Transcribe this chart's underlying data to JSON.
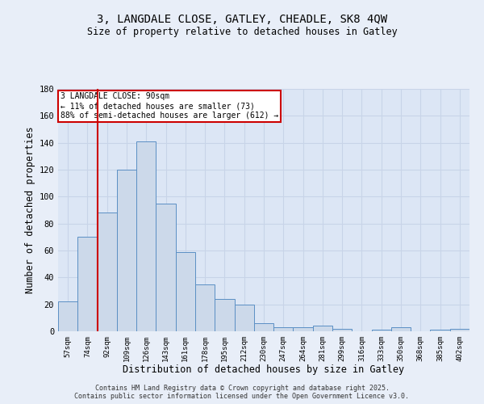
{
  "title1": "3, LANGDALE CLOSE, GATLEY, CHEADLE, SK8 4QW",
  "title2": "Size of property relative to detached houses in Gatley",
  "xlabel": "Distribution of detached houses by size in Gatley",
  "ylabel": "Number of detached properties",
  "bar_labels": [
    "57sqm",
    "74sqm",
    "92sqm",
    "109sqm",
    "126sqm",
    "143sqm",
    "161sqm",
    "178sqm",
    "195sqm",
    "212sqm",
    "230sqm",
    "247sqm",
    "264sqm",
    "281sqm",
    "299sqm",
    "316sqm",
    "333sqm",
    "350sqm",
    "368sqm",
    "385sqm",
    "402sqm"
  ],
  "bar_values": [
    22,
    70,
    88,
    120,
    141,
    95,
    59,
    35,
    24,
    20,
    6,
    3,
    3,
    4,
    2,
    0,
    1,
    3,
    0,
    1,
    2
  ],
  "bar_color": "#ccd9ea",
  "bar_edge_color": "#5b8fc4",
  "red_line_index": 2,
  "annotation_text": "3 LANGDALE CLOSE: 90sqm\n← 11% of detached houses are smaller (73)\n88% of semi-detached houses are larger (612) →",
  "annotation_box_color": "#ffffff",
  "annotation_box_edge": "#cc0000",
  "red_line_color": "#cc0000",
  "grid_color": "#c8d4e8",
  "background_color": "#dce6f5",
  "fig_background": "#e8eef8",
  "ylim": [
    0,
    180
  ],
  "yticks": [
    0,
    20,
    40,
    60,
    80,
    100,
    120,
    140,
    160,
    180
  ],
  "footer1": "Contains HM Land Registry data © Crown copyright and database right 2025.",
  "footer2": "Contains public sector information licensed under the Open Government Licence v3.0."
}
